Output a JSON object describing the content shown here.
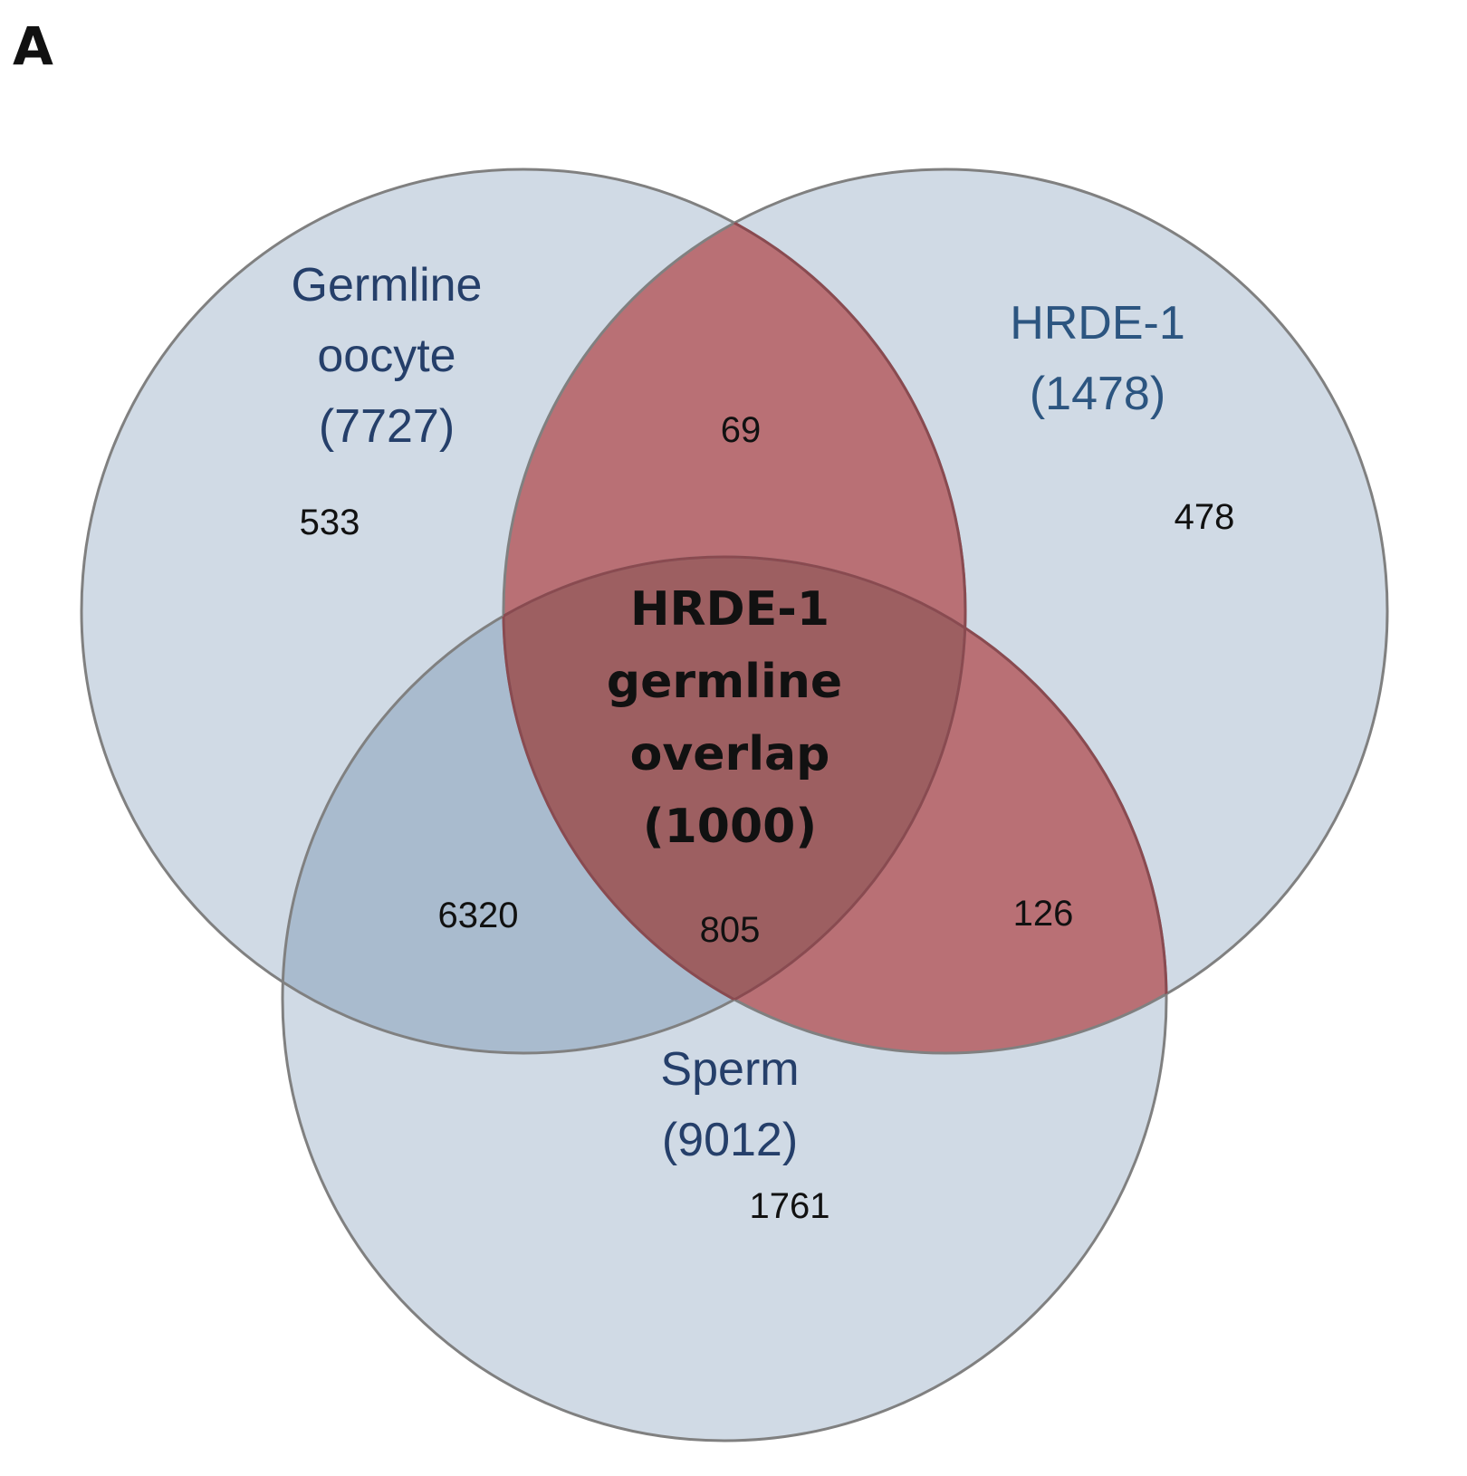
{
  "panel_letter": "A",
  "sets": {
    "oocyte": {
      "label_line1": "Germline",
      "label_line2": "oocyte",
      "label_line3": "(7727)"
    },
    "hrde1": {
      "label_line1": "HRDE-1",
      "label_line2": "(1478)"
    },
    "sperm": {
      "label_line1": "Sperm",
      "label_line2": "(9012)"
    }
  },
  "center_label": {
    "line1": "HRDE-1",
    "line2": "germline",
    "line3": "overlap",
    "line4": "(1000)"
  },
  "regions": {
    "oocyte_only": "533",
    "hrde1_only": "478",
    "sperm_only": "1761",
    "oocyte_hrde1_only": "69",
    "oocyte_sperm_only": "6320",
    "hrde1_sperm_only": "126",
    "all_three": "805"
  },
  "colors": {
    "circle_fill": "#d0dae5",
    "circle_stroke": "#808080",
    "hrde1_overlap_fill": "#b97075",
    "hrde1_overlap_stroke": "#8a4a50",
    "triple_overlap_fill": "#9d5f61",
    "oocyte_sperm_fill": "#a9bbce",
    "set_label_color": "#253f6a",
    "hrde1_label_color": "#2c5580",
    "number_color": "#111111"
  }
}
